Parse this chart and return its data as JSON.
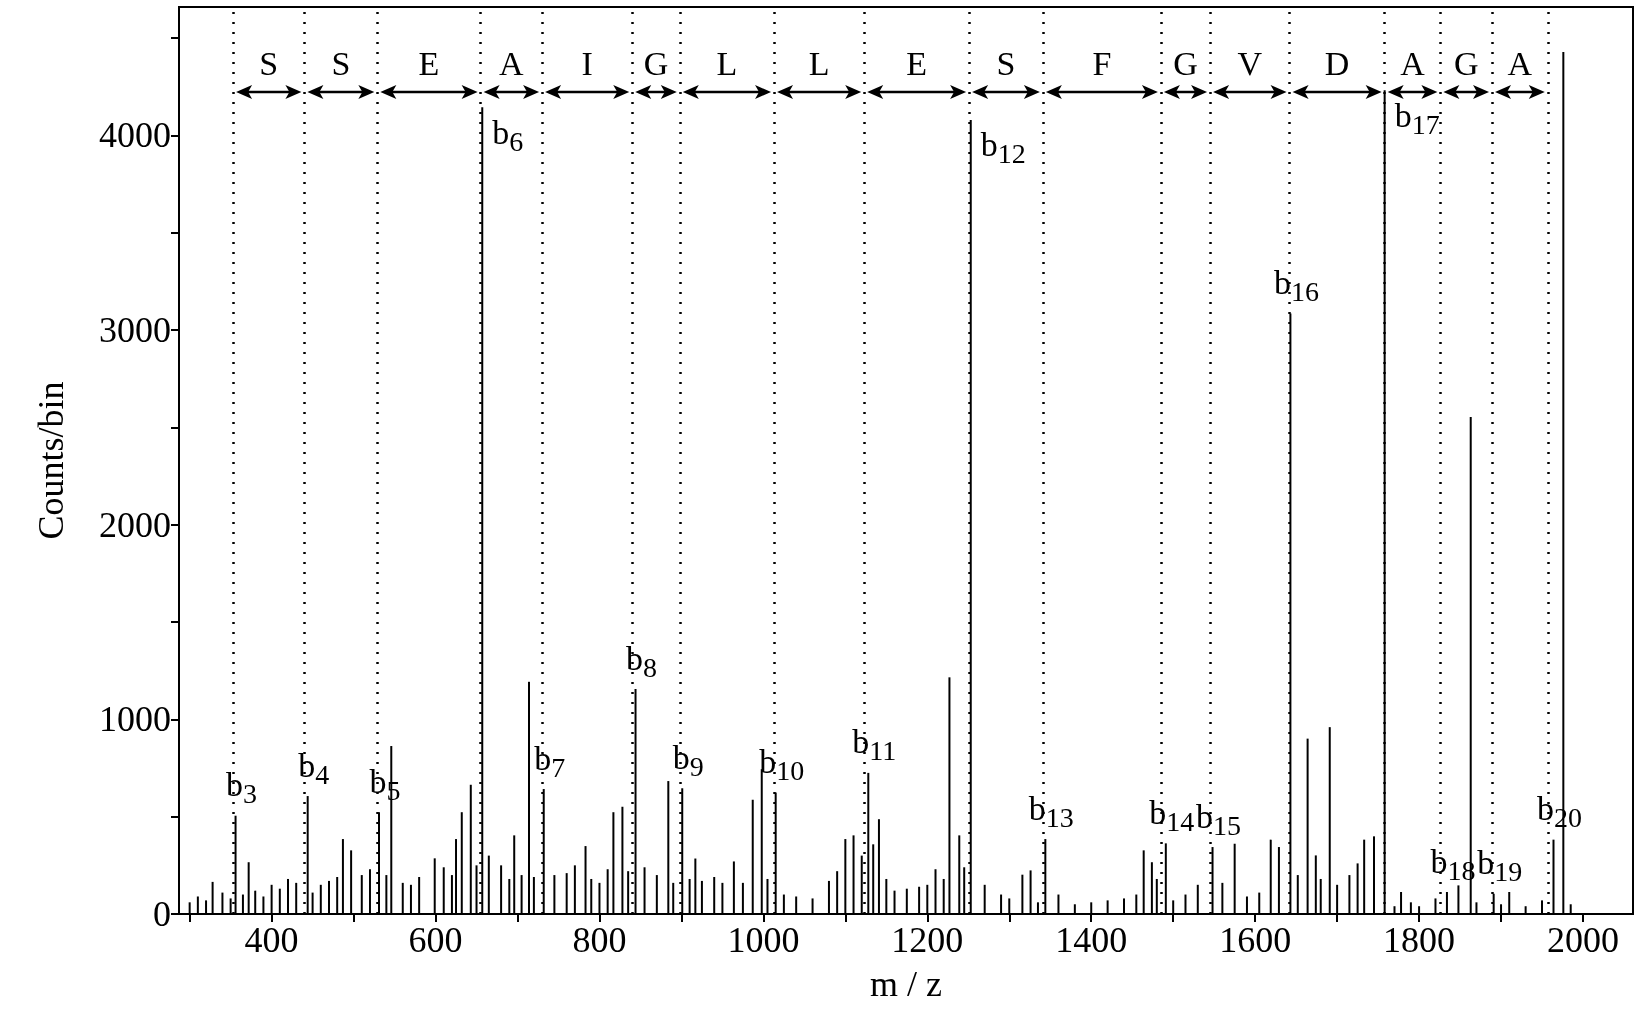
{
  "chart_data": {
    "type": "bar",
    "xlabel": "m / z",
    "ylabel": "Counts/bin",
    "x": [
      300,
      310,
      320,
      328,
      340,
      350,
      356,
      365,
      372,
      380,
      390,
      400,
      410,
      420,
      430,
      444,
      450,
      460,
      470,
      480,
      487,
      497,
      510,
      520,
      531,
      540,
      546,
      560,
      570,
      580,
      599,
      610,
      620,
      625,
      632,
      643,
      650,
      657,
      665,
      680,
      690,
      696,
      705,
      714,
      720,
      732,
      745,
      760,
      770,
      783,
      790,
      800,
      810,
      817,
      828,
      835,
      844,
      855,
      870,
      884,
      890,
      901,
      910,
      917,
      925,
      940,
      950,
      964,
      975,
      987,
      998,
      1005,
      1015,
      1025,
      1040,
      1060,
      1080,
      1090,
      1100,
      1110,
      1120,
      1128,
      1134,
      1141,
      1150,
      1160,
      1175,
      1190,
      1200,
      1210,
      1220,
      1227,
      1239,
      1245,
      1253,
      1270,
      1290,
      1300,
      1316,
      1326,
      1335,
      1344,
      1360,
      1380,
      1400,
      1420,
      1440,
      1455,
      1464,
      1474,
      1480,
      1491,
      1500,
      1515,
      1530,
      1548,
      1560,
      1575,
      1590,
      1605,
      1619,
      1629,
      1643,
      1652,
      1664,
      1674,
      1680,
      1691,
      1700,
      1715,
      1725,
      1733,
      1745,
      1758,
      1770,
      1778,
      1790,
      1800,
      1820,
      1834,
      1848,
      1863,
      1870,
      1891,
      1900,
      1910,
      1930,
      1950,
      1964,
      1976,
      1985
    ],
    "values": [
      60,
      90,
      70,
      165,
      110,
      80,
      505,
      100,
      266,
      120,
      90,
      150,
      130,
      180,
      160,
      606,
      110,
      150,
      170,
      190,
      385,
      327,
      200,
      230,
      523,
      200,
      863,
      160,
      150,
      190,
      286,
      240,
      200,
      385,
      523,
      664,
      250,
      4145,
      300,
      250,
      180,
      404,
      200,
      1193,
      190,
      642,
      200,
      210,
      250,
      349,
      180,
      160,
      230,
      523,
      551,
      220,
      1156,
      240,
      200,
      683,
      160,
      646,
      180,
      285,
      170,
      190,
      160,
      270,
      160,
      587,
      744,
      180,
      624,
      100,
      90,
      80,
      170,
      220,
      385,
      404,
      300,
      725,
      358,
      487,
      180,
      120,
      130,
      140,
      150,
      230,
      180,
      1216,
      404,
      240,
      4080,
      150,
      100,
      80,
      202,
      224,
      60,
      385,
      100,
      50,
      60,
      70,
      80,
      100,
      327,
      266,
      180,
      363,
      70,
      100,
      150,
      344,
      160,
      361,
      90,
      110,
      382,
      344,
      3085,
      200,
      901,
      301,
      180,
      960,
      150,
      200,
      260,
      382,
      399,
      4232,
      40,
      113,
      60,
      40,
      80,
      113,
      147,
      2554,
      60,
      104,
      50,
      113,
      40,
      70,
      382,
      4429,
      50
    ],
    "color": "#000000",
    "xlim": [
      287,
      2061
    ],
    "xticks": [
      {
        "value": 300,
        "label": null
      },
      400,
      {
        "value": 500,
        "label": null
      },
      600,
      {
        "value": 700,
        "label": null
      },
      800,
      {
        "value": 900,
        "label": null
      },
      1000,
      {
        "value": 1100,
        "label": null
      },
      1200,
      {
        "value": 1300,
        "label": null
      },
      1400,
      {
        "value": 1500,
        "label": null
      },
      1600,
      {
        "value": 1700,
        "label": null
      },
      1800,
      {
        "value": 1900,
        "label": null
      },
      2000
    ],
    "ylim": [
      0,
      4660
    ],
    "yticks": [
      0,
      {
        "value": 500,
        "label": null
      },
      1000,
      {
        "value": 1500,
        "label": null
      },
      2000,
      {
        "value": 2500,
        "label": null
      },
      3000,
      {
        "value": 3500,
        "label": null
      },
      4000,
      {
        "value": 4500,
        "label": null
      }
    ],
    "ref_lines": [
      {
        "axis": "x",
        "value": 353,
        "line_style": "dotted"
      },
      {
        "axis": "x",
        "value": 440,
        "line_style": "dotted"
      },
      {
        "axis": "x",
        "value": 529,
        "line_style": "dotted"
      },
      {
        "axis": "x",
        "value": 655,
        "line_style": "dotted"
      },
      {
        "axis": "x",
        "value": 730,
        "line_style": "dotted"
      },
      {
        "axis": "x",
        "value": 840,
        "line_style": "dotted"
      },
      {
        "axis": "x",
        "value": 898,
        "line_style": "dotted"
      },
      {
        "axis": "x",
        "value": 1013,
        "line_style": "dotted"
      },
      {
        "axis": "x",
        "value": 1123,
        "line_style": "dotted"
      },
      {
        "axis": "x",
        "value": 1251,
        "line_style": "dotted"
      },
      {
        "axis": "x",
        "value": 1341,
        "line_style": "dotted"
      },
      {
        "axis": "x",
        "value": 1485,
        "line_style": "dotted"
      },
      {
        "axis": "x",
        "value": 1545,
        "line_style": "dotted"
      },
      {
        "axis": "x",
        "value": 1642,
        "line_style": "dotted"
      },
      {
        "axis": "x",
        "value": 1758,
        "line_style": "dotted"
      },
      {
        "axis": "x",
        "value": 1826,
        "line_style": "dotted"
      },
      {
        "axis": "x",
        "value": 1889,
        "line_style": "dotted"
      },
      {
        "axis": "x",
        "value": 1957,
        "line_style": "dotted"
      }
    ],
    "annotations": [
      "S",
      "S",
      "E",
      "A",
      "I",
      "G",
      "L",
      "L",
      "E",
      "S",
      "F",
      "G",
      "V",
      "D",
      "A",
      "G",
      "A",
      {
        "text": "b$_{3}$",
        "x": 356,
        "y": 505
      },
      {
        "text": "b$_{4}$",
        "x": 444,
        "y": 606
      },
      {
        "text": "b$_{5}$",
        "x": 531,
        "y": 523
      },
      {
        "text": "b$_{6}$",
        "x": 657,
        "y": 4145
      },
      {
        "text": "b$_{7}$",
        "x": 732,
        "y": 642
      },
      {
        "text": "b$_{8}$",
        "x": 844,
        "y": 1156
      },
      {
        "text": "b$_{9}$",
        "x": 901,
        "y": 646
      },
      {
        "text": "b$_{10}$",
        "x": 1015,
        "y": 624
      },
      {
        "text": "b$_{11}$",
        "x": 1128,
        "y": 725
      },
      {
        "text": "b$_{12}$",
        "x": 1253,
        "y": 4080
      },
      {
        "text": "b$_{13}$",
        "x": 1344,
        "y": 385
      },
      {
        "text": "b$_{14}$",
        "x": 1491,
        "y": 363
      },
      {
        "text": "b$_{15}$",
        "x": 1548,
        "y": 344
      },
      {
        "text": "b$_{16}$",
        "x": 1643,
        "y": 3085
      },
      {
        "text": "b$_{17}$",
        "x": 1758,
        "y": 4232
      },
      {
        "text": "b$_{18}$",
        "x": 1834,
        "y": 113
      },
      {
        "text": "b$_{19}$",
        "x": 1891,
        "y": 104
      },
      {
        "text": "b$_{20}$",
        "x": 1964,
        "y": 382
      }
    ]
  }
}
